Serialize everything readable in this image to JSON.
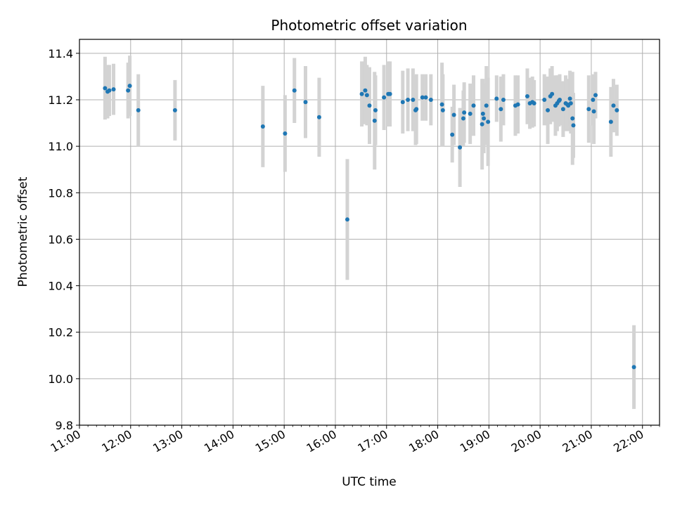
{
  "chart_data": {
    "type": "scatter",
    "title": "Photometric offset variation",
    "xlabel": "UTC time",
    "ylabel": "Photometric offset",
    "xlim": [
      "11:00",
      "22:20"
    ],
    "ylim": [
      9.8,
      11.46
    ],
    "grid": true,
    "x_ticks": [
      "11:00",
      "12:00",
      "13:00",
      "14:00",
      "15:00",
      "16:00",
      "17:00",
      "18:00",
      "19:00",
      "20:00",
      "21:00",
      "22:00"
    ],
    "y_ticks": [
      "9.8",
      "10.0",
      "10.2",
      "10.4",
      "10.6",
      "10.8",
      "11.0",
      "11.2",
      "11.4"
    ],
    "colors": {
      "point": "#1f77b4",
      "error_bar": "#d3d3d3",
      "grid": "#b0b0b0"
    },
    "series": [
      {
        "x": [
          "11:30",
          "11:33",
          "11:35",
          "11:40",
          "11:57",
          "11:59",
          "12:09",
          "12:52",
          "14:35",
          "15:01",
          "15:12",
          "15:25",
          "15:41",
          "16:14",
          "16:31",
          "16:35",
          "16:37",
          "16:40",
          "16:46",
          "16:47",
          "16:57",
          "17:02",
          "17:04",
          "17:19",
          "17:25",
          "17:31",
          "17:34",
          "17:35",
          "17:42",
          "17:46",
          "17:52",
          "18:05",
          "18:06",
          "18:17",
          "18:19",
          "18:26",
          "18:30",
          "18:31",
          "18:38",
          "18:42",
          "18:52",
          "18:53",
          "18:54",
          "18:57",
          "18:59",
          "19:09",
          "19:14",
          "19:17",
          "19:31",
          "19:34",
          "19:45",
          "19:48",
          "19:51",
          "19:53",
          "20:05",
          "20:09",
          "20:12",
          "20:14",
          "20:18",
          "20:20",
          "20:22",
          "20:23",
          "20:27",
          "20:30",
          "20:32",
          "20:33",
          "20:35",
          "20:36",
          "20:38",
          "20:39",
          "20:57",
          "21:02",
          "21:03",
          "21:05",
          "21:23",
          "21:26",
          "21:30",
          "21:50"
        ],
        "y": [
          11.25,
          11.235,
          11.24,
          11.245,
          11.24,
          11.26,
          11.155,
          11.155,
          11.085,
          11.055,
          11.24,
          11.19,
          11.125,
          10.685,
          11.225,
          11.24,
          11.22,
          11.175,
          11.11,
          11.155,
          11.21,
          11.225,
          11.225,
          11.19,
          11.2,
          11.2,
          11.155,
          11.16,
          11.21,
          11.21,
          11.2,
          11.18,
          11.155,
          11.05,
          11.135,
          10.995,
          11.12,
          11.145,
          11.14,
          11.175,
          11.095,
          11.14,
          11.12,
          11.175,
          11.105,
          11.205,
          11.16,
          11.2,
          11.175,
          11.18,
          11.215,
          11.185,
          11.19,
          11.185,
          11.2,
          11.155,
          11.215,
          11.225,
          11.175,
          11.185,
          11.195,
          11.2,
          11.16,
          11.185,
          11.18,
          11.175,
          11.205,
          11.185,
          11.12,
          11.09,
          11.16,
          11.2,
          11.15,
          11.22,
          11.105,
          11.175,
          11.155,
          10.05
        ],
        "err": [
          0.135,
          0.115,
          0.11,
          0.11,
          0.12,
          0.13,
          0.155,
          0.13,
          0.175,
          0.165,
          0.14,
          0.155,
          0.17,
          0.26,
          0.14,
          0.145,
          0.13,
          0.165,
          0.21,
          0.15,
          0.14,
          0.14,
          0.14,
          0.135,
          0.135,
          0.135,
          0.15,
          0.15,
          0.1,
          0.1,
          0.11,
          0.18,
          0.155,
          0.12,
          0.13,
          0.17,
          0.12,
          0.13,
          0.13,
          0.13,
          0.195,
          0.15,
          0.15,
          0.17,
          0.19,
          0.1,
          0.14,
          0.11,
          0.13,
          0.125,
          0.12,
          0.11,
          0.11,
          0.1,
          0.11,
          0.145,
          0.12,
          0.12,
          0.13,
          0.12,
          0.11,
          0.11,
          0.12,
          0.12,
          0.11,
          0.11,
          0.12,
          0.13,
          0.2,
          0.14,
          0.145,
          0.11,
          0.14,
          0.1,
          0.15,
          0.115,
          0.11,
          0.18
        ]
      }
    ]
  }
}
